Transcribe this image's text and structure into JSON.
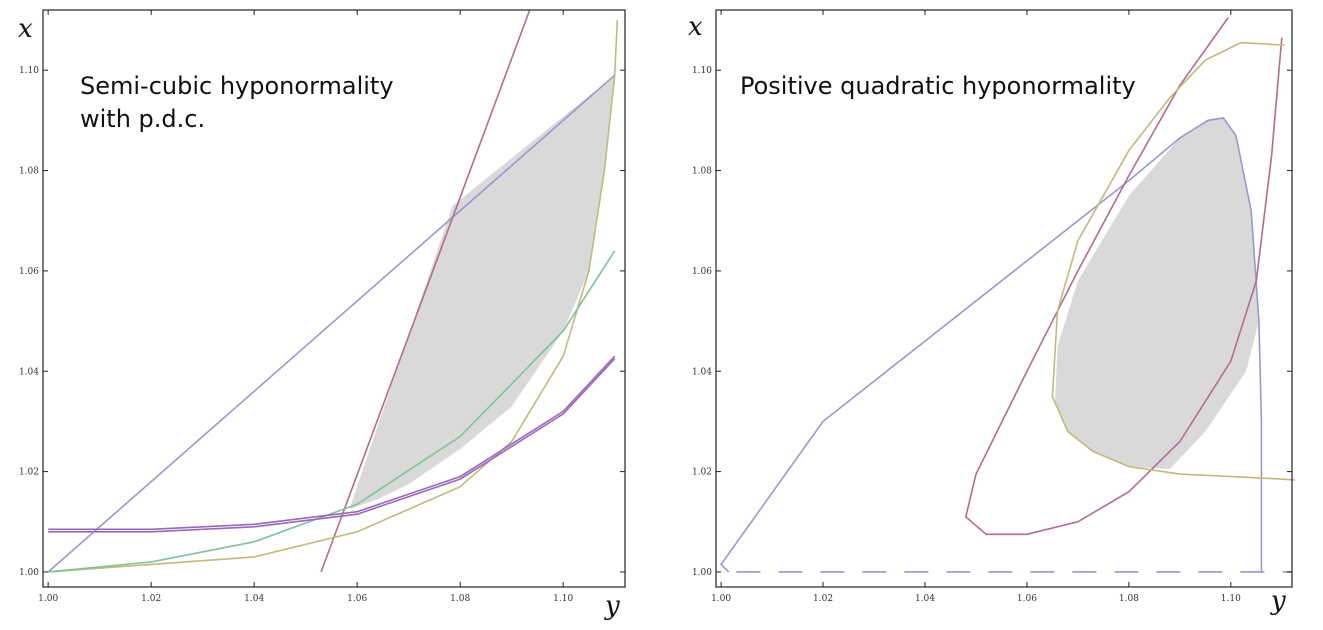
{
  "chart_data": [
    {
      "type": "line",
      "xlabel": "y",
      "ylabel": "x",
      "xlim": [
        0.999,
        1.112
      ],
      "ylim": [
        0.997,
        1.112
      ],
      "xticks": [
        "1.00",
        "1.02",
        "1.04",
        "1.06",
        "1.08",
        "1.10"
      ],
      "yticks": [
        "1.00",
        "1.02",
        "1.04",
        "1.06",
        "1.08",
        "1.10"
      ],
      "annotation": [
        "Semi-cubic hyponormality",
        "with p.d.c."
      ],
      "grid": false,
      "colors": {
        "blue": "#9a98cc",
        "magenta": "#b36b94",
        "olive": "#c2b97c",
        "green": "#7fc39a",
        "purple": "#9968b8",
        "shade": "#d9d9d9"
      },
      "series": [
        {
          "color": "blue",
          "points": [
            [
              1.0,
              1.0
            ],
            [
              1.11,
              1.099
            ]
          ]
        },
        {
          "color": "magenta",
          "points": [
            [
              1.053,
              1.0
            ],
            [
              1.0935,
              1.112
            ]
          ]
        },
        {
          "color": "olive",
          "points": [
            [
              1.0,
              1.0
            ],
            [
              1.04,
              1.003
            ],
            [
              1.06,
              1.008
            ],
            [
              1.08,
              1.017
            ],
            [
              1.09,
              1.026
            ],
            [
              1.1,
              1.043
            ],
            [
              1.105,
              1.06
            ],
            [
              1.108,
              1.08
            ],
            [
              1.11,
              1.099
            ],
            [
              1.1105,
              1.11
            ]
          ]
        },
        {
          "color": "green",
          "points": [
            [
              1.0,
              1.0
            ],
            [
              1.02,
              1.002
            ],
            [
              1.04,
              1.006
            ],
            [
              1.06,
              1.0135
            ],
            [
              1.08,
              1.027
            ],
            [
              1.1,
              1.048
            ],
            [
              1.11,
              1.064
            ]
          ]
        },
        {
          "color": "purple",
          "points": [
            [
              1.0,
              1.0085
            ],
            [
              1.02,
              1.0085
            ],
            [
              1.04,
              1.0095
            ],
            [
              1.06,
              1.012
            ],
            [
              1.08,
              1.019
            ],
            [
              1.1,
              1.032
            ],
            [
              1.11,
              1.043
            ]
          ]
        },
        {
          "color": "purple",
          "points": [
            [
              1.0,
              1.008
            ],
            [
              1.02,
              1.008
            ],
            [
              1.04,
              1.009
            ],
            [
              1.06,
              1.0115
            ],
            [
              1.08,
              1.0185
            ],
            [
              1.1,
              1.0315
            ],
            [
              1.11,
              1.0425
            ]
          ]
        }
      ],
      "region": [
        [
          1.0585,
          1.0125
        ],
        [
          1.064,
          1.0145
        ],
        [
          1.07,
          1.0175
        ],
        [
          1.08,
          1.0245
        ],
        [
          1.09,
          1.033
        ],
        [
          1.1,
          1.048
        ],
        [
          1.105,
          1.06
        ],
        [
          1.108,
          1.08
        ],
        [
          1.11,
          1.099
        ],
        [
          1.0785,
          1.073
        ],
        [
          1.0585,
          1.0125
        ]
      ]
    },
    {
      "type": "line",
      "xlabel": "y",
      "ylabel": "x",
      "xlim": [
        0.999,
        1.112
      ],
      "ylim": [
        0.997,
        1.112
      ],
      "xticks": [
        "1.00",
        "1.02",
        "1.04",
        "1.06",
        "1.08",
        "1.10"
      ],
      "yticks": [
        "1.00",
        "1.02",
        "1.04",
        "1.06",
        "1.08",
        "1.10"
      ],
      "annotation": [
        "Positive quadratic hyponormality"
      ],
      "grid": false,
      "colors": {
        "blue": "#9a98cc",
        "magenta": "#b36b94",
        "olive": "#c2b97c",
        "shade": "#d9d9d9"
      },
      "series": [
        {
          "color": "blue",
          "points": [
            [
              1.106,
              1.0
            ],
            [
              1.106,
              1.01
            ],
            [
              1.106,
              1.03
            ],
            [
              1.1055,
              1.05
            ],
            [
              1.104,
              1.072
            ],
            [
              1.101,
              1.087
            ],
            [
              1.0985,
              1.0905
            ],
            [
              1.0955,
              1.09
            ],
            [
              1.09,
              1.0865
            ],
            [
              1.08,
              1.078
            ],
            [
              1.06,
              1.062
            ],
            [
              1.04,
              1.046
            ],
            [
              1.02,
              1.03
            ],
            [
              1.0,
              1.0015
            ],
            [
              1.0015,
              1.0
            ]
          ]
        },
        {
          "color": "magenta",
          "points": [
            [
              1.0995,
              1.1105
            ],
            [
              1.09,
              1.097
            ],
            [
              1.08,
              1.079
            ],
            [
              1.07,
              1.06
            ],
            [
              1.06,
              1.04
            ],
            [
              1.05,
              1.0195
            ],
            [
              1.048,
              1.011
            ],
            [
              1.052,
              1.0075
            ],
            [
              1.06,
              1.0075
            ],
            [
              1.07,
              1.01
            ],
            [
              1.08,
              1.016
            ],
            [
              1.09,
              1.026
            ],
            [
              1.1,
              1.042
            ],
            [
              1.105,
              1.058
            ],
            [
              1.108,
              1.083
            ],
            [
              1.11,
              1.1065
            ]
          ]
        },
        {
          "color": "olive",
          "points": [
            [
              1.1105,
              1.105
            ],
            [
              1.102,
              1.1055
            ],
            [
              1.095,
              1.102
            ],
            [
              1.088,
              1.0945
            ],
            [
              1.08,
              1.084
            ],
            [
              1.07,
              1.066
            ],
            [
              1.066,
              1.052
            ],
            [
              1.065,
              1.035
            ],
            [
              1.068,
              1.028
            ],
            [
              1.073,
              1.024
            ],
            [
              1.08,
              1.021
            ],
            [
              1.09,
              1.0195
            ],
            [
              1.1,
              1.019
            ],
            [
              1.11,
              1.0185
            ],
            [
              1.1125,
              1.0183
            ]
          ]
        },
        {
          "color": "blue",
          "style": "dashed",
          "points": [
            [
              1.003,
              1.0
            ],
            [
              1.112,
              1.0
            ]
          ]
        }
      ],
      "region": [
        [
          1.0655,
          1.0335
        ],
        [
          1.066,
          1.045
        ],
        [
          1.07,
          1.058
        ],
        [
          1.08,
          1.075
        ],
        [
          1.09,
          1.0865
        ],
        [
          1.0955,
          1.09
        ],
        [
          1.0985,
          1.0905
        ],
        [
          1.101,
          1.087
        ],
        [
          1.104,
          1.072
        ],
        [
          1.1055,
          1.05
        ],
        [
          1.103,
          1.04
        ],
        [
          1.095,
          1.028
        ],
        [
          1.088,
          1.0205
        ],
        [
          1.08,
          1.021
        ],
        [
          1.073,
          1.024
        ],
        [
          1.068,
          1.028
        ],
        [
          1.0655,
          1.0335
        ]
      ]
    }
  ],
  "axis_letters": {
    "x": "x",
    "y": "y"
  }
}
